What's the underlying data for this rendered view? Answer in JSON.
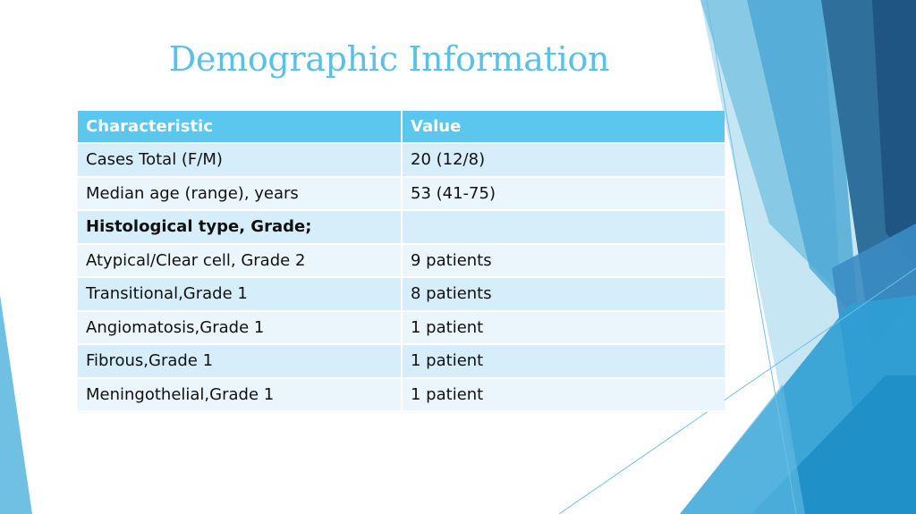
{
  "slide": {
    "title": "Demographic Information",
    "accent_color": "#5bc0e6",
    "header_color": "#5cc7ee"
  },
  "table": {
    "headers": [
      "Characteristic",
      "Value"
    ],
    "rows": [
      {
        "characteristic": "Cases Total (F/M)",
        "value": "20 (12/8)"
      },
      {
        "characteristic": "Median age (range), years",
        "value": "53 (41-75)"
      },
      {
        "characteristic": "Histological type, Grade;",
        "value": ""
      },
      {
        "characteristic": "Atypical/Clear cell, Grade 2",
        "value": "9 patients"
      },
      {
        "characteristic": "Transitional,Grade 1",
        "value": "8 patients"
      },
      {
        "characteristic": "Angiomatosis,Grade 1",
        "value": "1 patient"
      },
      {
        "characteristic": "Fibrous,Grade 1",
        "value": "1 patient"
      },
      {
        "characteristic": "Meningothelial,Grade 1",
        "value": "1 patient"
      }
    ]
  }
}
